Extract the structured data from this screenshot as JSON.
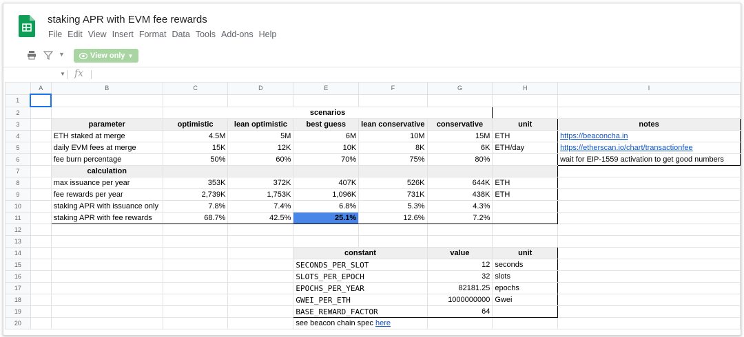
{
  "app": {
    "title": "staking APR with EVM fee rewards",
    "menu": [
      "File",
      "Edit",
      "View",
      "Insert",
      "Format",
      "Data",
      "Tools",
      "Add-ons",
      "Help"
    ],
    "view_only_label": "View only",
    "formula_bar": {
      "fx_label": "fx",
      "content": ""
    }
  },
  "columns": [
    "A",
    "B",
    "C",
    "D",
    "E",
    "F",
    "G",
    "H",
    "I"
  ],
  "rows": [
    "1",
    "2",
    "3",
    "4",
    "5",
    "6",
    "7",
    "8",
    "9",
    "10",
    "11",
    "12",
    "13",
    "14",
    "15",
    "16",
    "17",
    "18",
    "19",
    "20"
  ],
  "scenarios_table": {
    "group_header": "scenarios",
    "col_headers": [
      "parameter",
      "optimistic",
      "lean optimistic",
      "best guess",
      "lean conservative",
      "conservative",
      "unit",
      "notes"
    ],
    "params": [
      {
        "label": "ETH staked at merge",
        "values": [
          "4.5M",
          "5M",
          "6M",
          "10M",
          "15M"
        ],
        "unit": "ETH",
        "note": "https://beaconcha.in",
        "note_link": true
      },
      {
        "label": "daily EVM fees at merge",
        "values": [
          "15K",
          "12K",
          "10K",
          "8K",
          "6K"
        ],
        "unit": "ETH/day",
        "note": "https://etherscan.io/chart/transactionfee",
        "note_link": true
      },
      {
        "label": "fee burn percentage",
        "values": [
          "50%",
          "60%",
          "70%",
          "75%",
          "80%"
        ],
        "unit": "",
        "note": "wait for EIP-1559 activation to get good numbers",
        "note_link": false
      }
    ],
    "calc_header": "calculation",
    "calcs": [
      {
        "label": "max issuance per year",
        "values": [
          "353K",
          "372K",
          "407K",
          "526K",
          "644K"
        ],
        "unit": "ETH"
      },
      {
        "label": "fee rewards per year",
        "values": [
          "2,739K",
          "1,753K",
          "1,096K",
          "731K",
          "438K"
        ],
        "unit": "ETH"
      },
      {
        "label": "staking APR with issuance only",
        "values": [
          "7.8%",
          "7.4%",
          "6.8%",
          "5.3%",
          "4.3%"
        ],
        "unit": ""
      },
      {
        "label": "staking APR with fee rewards",
        "values": [
          "68.7%",
          "42.5%",
          "25.1%",
          "12.6%",
          "7.2%"
        ],
        "unit": ""
      }
    ]
  },
  "constants_table": {
    "headers": [
      "constant",
      "value",
      "unit"
    ],
    "rows": [
      {
        "name": "SECONDS_PER_SLOT",
        "value": "12",
        "unit": "seconds"
      },
      {
        "name": "SLOTS_PER_EPOCH",
        "value": "32",
        "unit": "slots"
      },
      {
        "name": "EPOCHS_PER_YEAR",
        "value": "82181.25",
        "unit": "epochs"
      },
      {
        "name": "GWEI_PER_ETH",
        "value": "1000000000",
        "unit": "Gwei"
      },
      {
        "name": "BASE_REWARD_FACTOR",
        "value": "64",
        "unit": ""
      }
    ],
    "footnote": "see beacon chain spec ",
    "footnote_link": "here"
  },
  "colors": {
    "highlight": "#4a86e8",
    "header_bg": "#efefef",
    "link": "#1155cc",
    "sheets_green": "#0f9d58"
  }
}
